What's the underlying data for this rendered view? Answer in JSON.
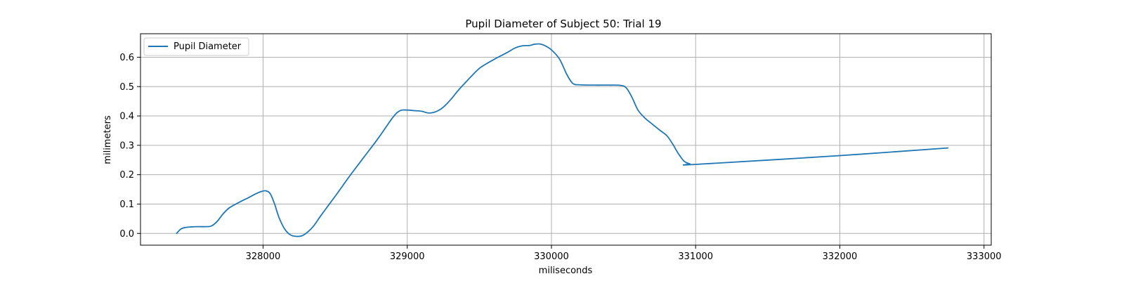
{
  "chart_data": {
    "type": "line",
    "title": "Pupil Diameter of Subject 50: Trial 19",
    "xlabel": "miliseconds",
    "ylabel": "milimeters",
    "xlim": [
      327150,
      333050
    ],
    "ylim": [
      -0.04,
      0.68
    ],
    "xticks": [
      328000,
      329000,
      330000,
      331000,
      332000,
      333000
    ],
    "yticks": [
      0.0,
      0.1,
      0.2,
      0.3,
      0.4,
      0.5,
      0.6
    ],
    "ytick_labels": [
      "0.0",
      "0.1",
      "0.2",
      "0.3",
      "0.4",
      "0.5",
      "0.6"
    ],
    "grid": true,
    "legend_position": "top-left",
    "series": [
      {
        "name": "Pupil Diameter",
        "color": "#1f77b4",
        "x": [
          327400,
          327430,
          327460,
          327500,
          327550,
          327600,
          327640,
          327680,
          327720,
          327760,
          327800,
          327850,
          327900,
          327950,
          327990,
          328020,
          328050,
          328080,
          328110,
          328150,
          328190,
          328230,
          328270,
          328310,
          328350,
          328400,
          328460,
          328520,
          328600,
          328700,
          328800,
          328900,
          328950,
          329000,
          329050,
          329100,
          329150,
          329200,
          329250,
          329300,
          329350,
          329400,
          329450,
          329500,
          329550,
          329600,
          329650,
          329700,
          329750,
          329800,
          329850,
          329880,
          329920,
          329960,
          330000,
          330050,
          330080,
          330110,
          330150,
          330200,
          330300,
          330400,
          330480,
          330520,
          330560,
          330600,
          330650,
          330700,
          330750,
          330800,
          330840,
          330880,
          330920,
          330960,
          331000,
          332000,
          332750
        ],
        "y": [
          0.0,
          0.015,
          0.02,
          0.022,
          0.023,
          0.023,
          0.025,
          0.04,
          0.065,
          0.085,
          0.097,
          0.11,
          0.122,
          0.135,
          0.143,
          0.145,
          0.135,
          0.1,
          0.055,
          0.015,
          -0.005,
          -0.01,
          -0.008,
          0.005,
          0.025,
          0.06,
          0.1,
          0.14,
          0.195,
          0.26,
          0.325,
          0.395,
          0.418,
          0.42,
          0.418,
          0.416,
          0.41,
          0.415,
          0.43,
          0.455,
          0.485,
          0.512,
          0.538,
          0.562,
          0.578,
          0.592,
          0.605,
          0.618,
          0.632,
          0.639,
          0.64,
          0.644,
          0.645,
          0.638,
          0.625,
          0.598,
          0.57,
          0.538,
          0.51,
          0.506,
          0.505,
          0.505,
          0.504,
          0.495,
          0.462,
          0.42,
          0.392,
          0.372,
          0.352,
          0.333,
          0.305,
          0.272,
          0.246,
          0.237,
          0.235,
          0.265,
          0.291
        ]
      }
    ]
  }
}
